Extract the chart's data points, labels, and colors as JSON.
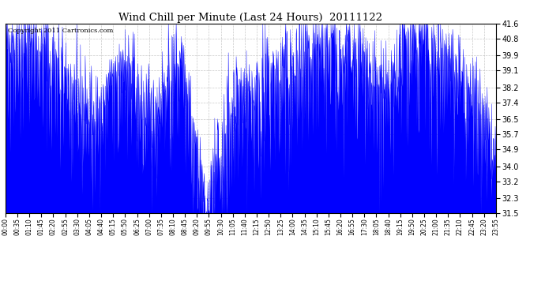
{
  "title": "Wind Chill per Minute (Last 24 Hours)  20111122",
  "copyright_text": "Copyright 2011 Cartronics.com",
  "line_color": "#0000ff",
  "fill_color": "#0000ff",
  "bg_color": "#ffffff",
  "grid_color": "#bbbbbb",
  "yticks": [
    31.5,
    32.3,
    33.2,
    34.0,
    34.9,
    35.7,
    36.5,
    37.4,
    38.2,
    39.1,
    39.9,
    40.8,
    41.6
  ],
  "ymin": 31.5,
  "ymax": 41.6,
  "xtick_labels": [
    "00:00",
    "00:35",
    "01:10",
    "01:45",
    "02:20",
    "02:55",
    "03:30",
    "04:05",
    "04:40",
    "05:15",
    "05:50",
    "06:25",
    "07:00",
    "07:35",
    "08:10",
    "08:45",
    "09:20",
    "09:55",
    "10:30",
    "11:05",
    "11:40",
    "12:15",
    "12:50",
    "13:25",
    "14:00",
    "14:35",
    "15:10",
    "15:45",
    "16:20",
    "16:55",
    "17:30",
    "18:05",
    "18:40",
    "19:15",
    "19:50",
    "20:25",
    "21:00",
    "21:35",
    "22:10",
    "22:45",
    "23:20",
    "23:55"
  ],
  "num_points": 1440,
  "seed": 42
}
